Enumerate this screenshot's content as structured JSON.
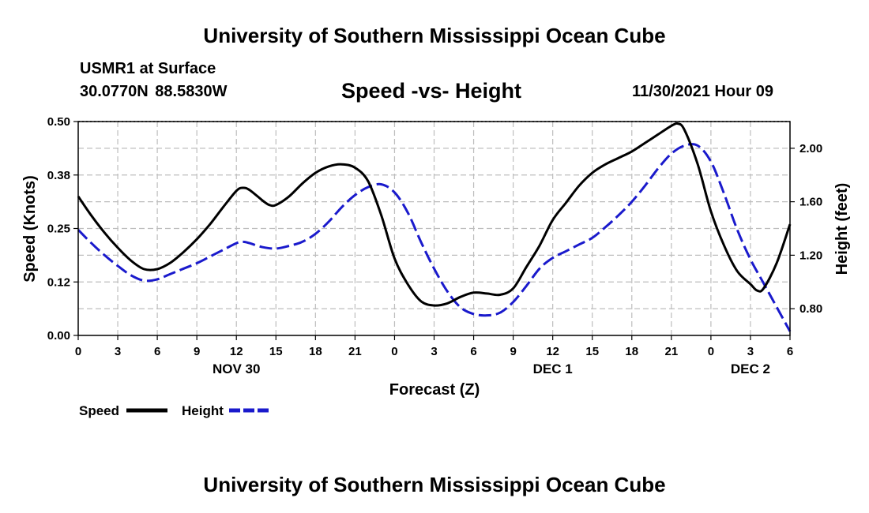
{
  "header": {
    "title": "University of Southern Mississippi Ocean Cube",
    "station": "USMR1 at Surface",
    "coordinates": "30.0770N  88.5830W",
    "datetime": "11/30/2021 Hour 09"
  },
  "footer": {
    "title": "University of Southern Mississippi Ocean Cube"
  },
  "chart_data": {
    "type": "line",
    "title": "Speed -vs- Height",
    "xlabel": "Forecast (Z)",
    "ylabel_left": "Speed (Knots)",
    "ylabel_right": "Height (feet)",
    "x_unit": "hours from forecast start",
    "xlim": [
      0,
      54
    ],
    "ylim_left": [
      0,
      0.5
    ],
    "ylim_right": [
      0.6,
      2.2
    ],
    "x_ticks": [
      0,
      3,
      6,
      9,
      12,
      15,
      18,
      21,
      24,
      27,
      30,
      33,
      36,
      39,
      42,
      45,
      48,
      51,
      54
    ],
    "x_tick_labels": [
      "0",
      "3",
      "6",
      "9",
      "12",
      "15",
      "18",
      "21",
      "0",
      "3",
      "6",
      "9",
      "12",
      "15",
      "18",
      "21",
      "0",
      "3",
      "6"
    ],
    "y_left_ticks": [
      0,
      0.125,
      0.25,
      0.375,
      0.5
    ],
    "y_left_tick_labels": [
      "0.00",
      "0.12",
      "0.25",
      "0.38",
      "0.50"
    ],
    "y_right_ticks": [
      0.8,
      1.2,
      1.6,
      2.0
    ],
    "y_right_tick_labels": [
      "0.80",
      "1.20",
      "1.60",
      "2.00"
    ],
    "date_labels": [
      {
        "x": 12,
        "label": "NOV 30"
      },
      {
        "x": 36,
        "label": "DEC 1"
      },
      {
        "x": 51,
        "label": "DEC 2"
      }
    ],
    "grid": true,
    "legend_placement": "bottom-left",
    "series": [
      {
        "name": "Speed",
        "axis": "left",
        "color": "#000000",
        "style": "solid",
        "points": [
          [
            0,
            0.325
          ],
          [
            1,
            0.28
          ],
          [
            2,
            0.24
          ],
          [
            3,
            0.205
          ],
          [
            4,
            0.175
          ],
          [
            5,
            0.155
          ],
          [
            6,
            0.155
          ],
          [
            7,
            0.17
          ],
          [
            8,
            0.195
          ],
          [
            9,
            0.225
          ],
          [
            10,
            0.26
          ],
          [
            11,
            0.3
          ],
          [
            12,
            0.338
          ],
          [
            12.5,
            0.345
          ],
          [
            13,
            0.34
          ],
          [
            14,
            0.315
          ],
          [
            14.5,
            0.305
          ],
          [
            15,
            0.305
          ],
          [
            16,
            0.325
          ],
          [
            17,
            0.355
          ],
          [
            18,
            0.38
          ],
          [
            19,
            0.395
          ],
          [
            20,
            0.4
          ],
          [
            21,
            0.392
          ],
          [
            22,
            0.36
          ],
          [
            23,
            0.28
          ],
          [
            24,
            0.18
          ],
          [
            25,
            0.12
          ],
          [
            26,
            0.08
          ],
          [
            27,
            0.07
          ],
          [
            28,
            0.075
          ],
          [
            29,
            0.09
          ],
          [
            30,
            0.1
          ],
          [
            31,
            0.098
          ],
          [
            32,
            0.095
          ],
          [
            33,
            0.11
          ],
          [
            34,
            0.16
          ],
          [
            35,
            0.21
          ],
          [
            36,
            0.27
          ],
          [
            37,
            0.31
          ],
          [
            38,
            0.35
          ],
          [
            39,
            0.38
          ],
          [
            40,
            0.4
          ],
          [
            41,
            0.415
          ],
          [
            42,
            0.43
          ],
          [
            43,
            0.45
          ],
          [
            44,
            0.47
          ],
          [
            45,
            0.49
          ],
          [
            45.5,
            0.495
          ],
          [
            46,
            0.48
          ],
          [
            47,
            0.4
          ],
          [
            48,
            0.29
          ],
          [
            49,
            0.21
          ],
          [
            50,
            0.15
          ],
          [
            51,
            0.12
          ],
          [
            51.5,
            0.105
          ],
          [
            52,
            0.11
          ],
          [
            53,
            0.17
          ],
          [
            54,
            0.26
          ]
        ]
      },
      {
        "name": "Height",
        "axis": "right",
        "color": "#1a1acc",
        "style": "dashed",
        "points": [
          [
            0,
            1.39
          ],
          [
            1,
            1.29
          ],
          [
            2,
            1.2
          ],
          [
            3,
            1.12
          ],
          [
            4,
            1.05
          ],
          [
            5,
            1.01
          ],
          [
            6,
            1.02
          ],
          [
            7,
            1.06
          ],
          [
            8,
            1.1
          ],
          [
            9,
            1.14
          ],
          [
            10,
            1.19
          ],
          [
            11,
            1.24
          ],
          [
            12,
            1.29
          ],
          [
            12.5,
            1.3
          ],
          [
            13,
            1.29
          ],
          [
            14,
            1.26
          ],
          [
            15,
            1.25
          ],
          [
            16,
            1.27
          ],
          [
            17,
            1.3
          ],
          [
            18,
            1.36
          ],
          [
            19,
            1.45
          ],
          [
            20,
            1.56
          ],
          [
            21,
            1.65
          ],
          [
            22,
            1.71
          ],
          [
            23,
            1.73
          ],
          [
            24,
            1.67
          ],
          [
            25,
            1.52
          ],
          [
            26,
            1.3
          ],
          [
            27,
            1.1
          ],
          [
            28,
            0.93
          ],
          [
            29,
            0.81
          ],
          [
            30,
            0.76
          ],
          [
            31,
            0.75
          ],
          [
            32,
            0.77
          ],
          [
            33,
            0.85
          ],
          [
            34,
            0.97
          ],
          [
            35,
            1.1
          ],
          [
            36,
            1.18
          ],
          [
            37,
            1.23
          ],
          [
            38,
            1.28
          ],
          [
            39,
            1.33
          ],
          [
            40,
            1.41
          ],
          [
            41,
            1.5
          ],
          [
            42,
            1.6
          ],
          [
            43,
            1.72
          ],
          [
            44,
            1.85
          ],
          [
            45,
            1.96
          ],
          [
            46,
            2.02
          ],
          [
            47,
            2.02
          ],
          [
            48,
            1.9
          ],
          [
            49,
            1.66
          ],
          [
            50,
            1.39
          ],
          [
            51,
            1.17
          ],
          [
            52,
            0.99
          ],
          [
            53,
            0.81
          ],
          [
            54,
            0.63
          ]
        ]
      }
    ]
  }
}
